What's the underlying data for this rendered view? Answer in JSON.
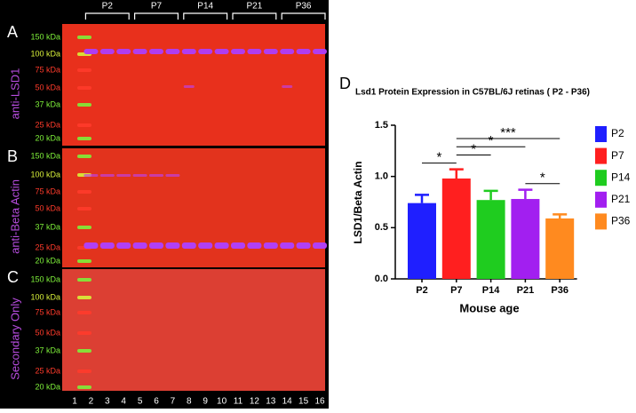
{
  "blot": {
    "group_labels": [
      "P2",
      "P7",
      "P14",
      "P21",
      "P36"
    ],
    "panels": [
      {
        "letter": "A",
        "antibody": "anti-LSD1",
        "markers": [
          "150 kDa",
          "100 kDa",
          "75 kDa",
          "50 kDa",
          "37 kDa",
          "25 kDa",
          "20 kDa"
        ]
      },
      {
        "letter": "B",
        "antibody": "anti-Beta Actin",
        "markers": [
          "150 kDa",
          "100 kDa",
          "75 kDa",
          "50 kDa",
          "37 kDa",
          "25 kDa",
          "20 kDa"
        ]
      },
      {
        "letter": "C",
        "antibody": "Secondary Only",
        "markers": [
          "150 kDa",
          "100 kDa",
          "75 kDa",
          "50 kDa",
          "37 kDa",
          "25 kDa",
          "20 kDa"
        ]
      }
    ],
    "lanes": [
      "1",
      "2",
      "3",
      "4",
      "5",
      "6",
      "7",
      "8",
      "9",
      "10",
      "11",
      "12",
      "13",
      "14",
      "15",
      "16"
    ]
  },
  "chart_data": {
    "type": "bar",
    "panel_label": "D",
    "title": "Lsd1 Protein Expression in C57BL/6J retinas ( P2 - P36)",
    "x_label": "Mouse age",
    "y_label": "LSD1/Beta Actin",
    "categories": [
      "P2",
      "P7",
      "P14",
      "P21",
      "P36"
    ],
    "values": [
      0.74,
      0.98,
      0.77,
      0.78,
      0.59
    ],
    "errors": [
      0.08,
      0.09,
      0.09,
      0.09,
      0.04
    ],
    "colors": [
      "#1f1fff",
      "#ff1f1f",
      "#1fcc1f",
      "#a21ff0",
      "#ff8a1f"
    ],
    "ylim": [
      0,
      1.5
    ],
    "yticks": [
      {
        "value": 0,
        "label": "0.0"
      },
      0.5,
      {
        "value": 1,
        "label": "1.0"
      },
      1.5
    ],
    "legend": "right",
    "annotations": [
      {
        "label": "*",
        "between": [
          "P2",
          "P7"
        ]
      },
      {
        "label": "*",
        "between": [
          "P7",
          "P14"
        ]
      },
      {
        "label": "*",
        "between": [
          "P7",
          "P21"
        ]
      },
      {
        "label": "***",
        "between": [
          "P7",
          "P36"
        ]
      },
      {
        "label": "*",
        "between": [
          "P21",
          "P36"
        ]
      }
    ]
  }
}
